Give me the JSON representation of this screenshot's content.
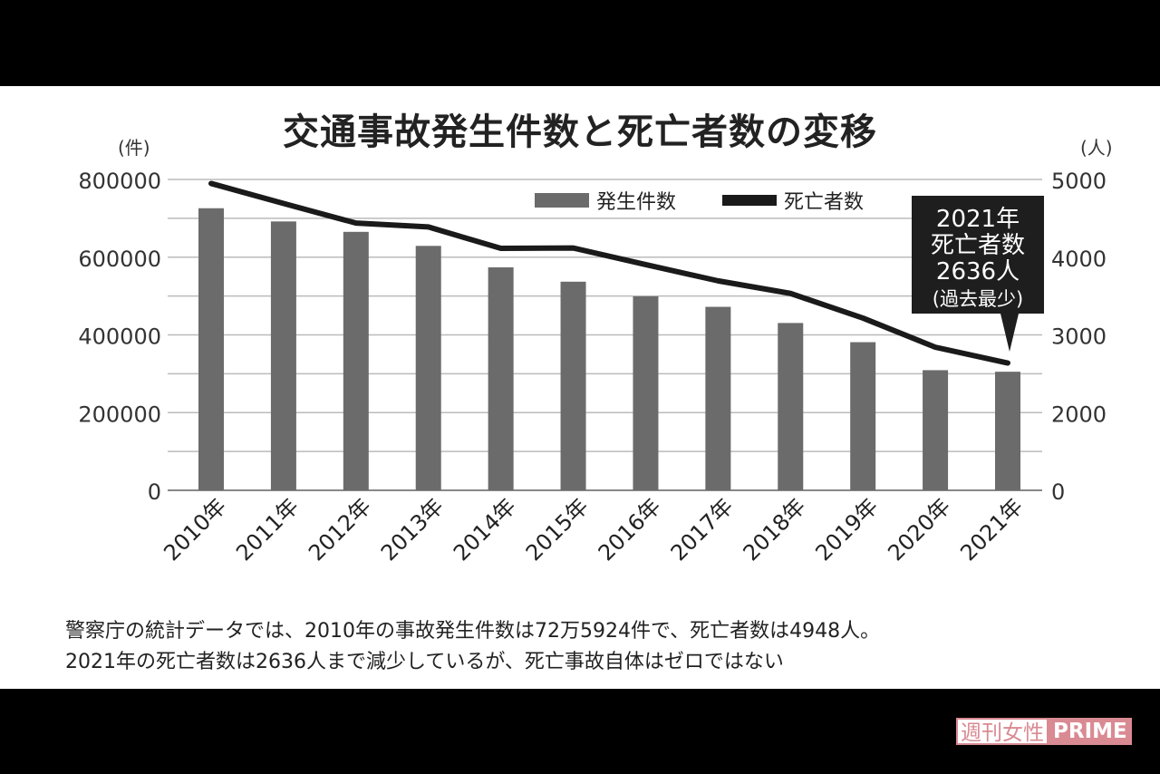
{
  "chart_data": {
    "type": "bar+line",
    "title": "交通事故発生件数と死亡者数の変移",
    "categories": [
      "2010年",
      "2011年",
      "2012年",
      "2013年",
      "2014年",
      "2015年",
      "2016年",
      "2017年",
      "2018年",
      "2019年",
      "2020年",
      "2021年"
    ],
    "series": [
      {
        "name": "発生件数",
        "type": "bar",
        "axis": "left",
        "color": "#6b6b6b",
        "values": [
          725924,
          691937,
          665157,
          629033,
          573842,
          536899,
          499201,
          472165,
          430601,
          381237,
          309178,
          305196
        ]
      },
      {
        "name": "死亡者数",
        "type": "line",
        "axis": "right",
        "color": "#1a1a1a",
        "values": [
          4948,
          4691,
          4438,
          4388,
          4113,
          4117,
          3904,
          3694,
          3532,
          3215,
          2839,
          2636
        ]
      }
    ],
    "left_axis": {
      "unit": "(件)",
      "ylim": [
        0,
        800000
      ],
      "ticks": [
        "800000",
        "600000",
        "400000",
        "200000",
        "0"
      ]
    },
    "right_axis": {
      "unit": "(人)",
      "ticks": [
        "5000",
        "4000",
        "3000",
        "2000",
        "0"
      ]
    },
    "grid": true,
    "legend_position": "top-right",
    "annotation": {
      "lines": [
        "2021年",
        "死亡者数",
        "2636人",
        "(過去最少)"
      ]
    }
  },
  "caption": [
    "警察庁の統計データでは、2010年の事故発生件数は72万5924件で、死亡者数は4948人。",
    "2021年の死亡者数は2636人まで減少しているが、死亡事故自体はゼロではない"
  ],
  "logo": {
    "jp": "週刊女性",
    "en": "PRIME"
  }
}
